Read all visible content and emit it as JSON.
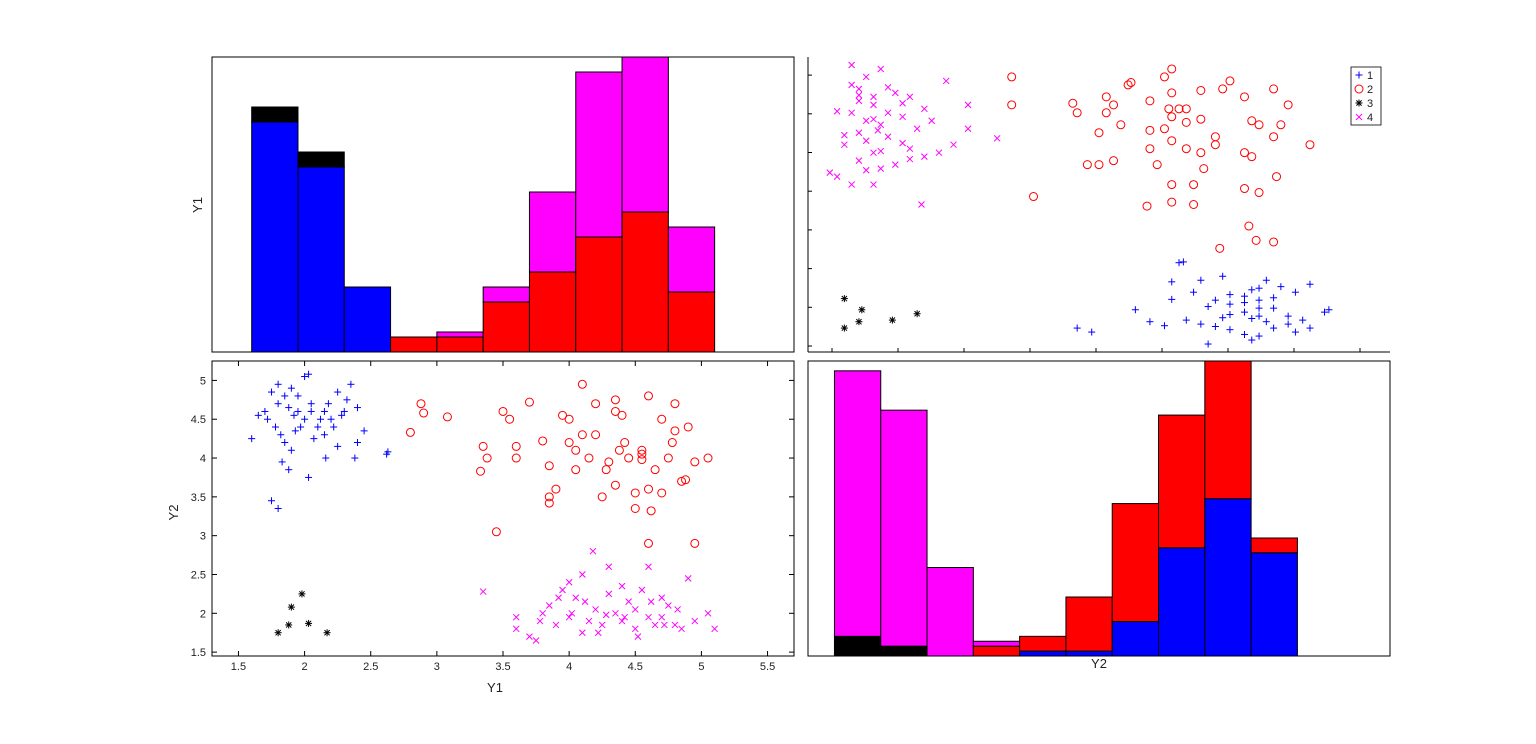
{
  "chart_data": [
    {
      "type": "bar",
      "panel": "top-left histogram",
      "ylabel": "Y1",
      "stacked": true,
      "bins_x": [
        1.6,
        1.95,
        2.3,
        2.65,
        3.0,
        3.35,
        3.7,
        4.05,
        4.4,
        4.75,
        5.1
      ],
      "series": [
        {
          "name": "1",
          "color": "#0000ff",
          "values": [
            46,
            37,
            13,
            0,
            0,
            0,
            0,
            0,
            0,
            0
          ]
        },
        {
          "name": "2",
          "color": "#ff0000",
          "values": [
            0,
            0,
            0,
            3,
            3,
            10,
            16,
            23,
            28,
            12
          ]
        },
        {
          "name": "3",
          "color": "#000000",
          "values": [
            3,
            3,
            0,
            0,
            0,
            0,
            0,
            0,
            0,
            0
          ]
        },
        {
          "name": "4",
          "color": "#ff00ff",
          "values": [
            0,
            0,
            0,
            0,
            1,
            3,
            16,
            33,
            31,
            13
          ]
        }
      ]
    },
    {
      "type": "scatter",
      "panel": "top-right scatter",
      "legend": {
        "placement": "top-right",
        "entries": [
          "1",
          "2",
          "3",
          "4"
        ]
      },
      "xlim": [
        1.5,
        5.5
      ],
      "ylim": [
        1.5,
        5.2
      ]
    },
    {
      "type": "scatter",
      "panel": "bottom-left scatter",
      "xlabel": "Y1",
      "ylabel": "Y2",
      "xlim": [
        1.3,
        5.7
      ],
      "ylim": [
        1.45,
        5.25
      ],
      "xticks": [
        "1.5",
        "2",
        "2.5",
        "3",
        "3.5",
        "4",
        "4.5",
        "5",
        "5.5"
      ],
      "yticks": [
        "1.5",
        "2",
        "2.5",
        "3",
        "3.5",
        "4",
        "4.5",
        "5"
      ],
      "series": [
        {
          "name": "1",
          "color": "#0000ff",
          "marker": "+",
          "points": [
            [
              1.75,
              3.45
            ],
            [
              1.8,
              3.35
            ],
            [
              2.62,
              4.05
            ],
            [
              1.6,
              4.25
            ],
            [
              2.63,
              4.08
            ],
            [
              2.38,
              4.0
            ],
            [
              2.16,
              4.0
            ],
            [
              2.03,
              3.75
            ],
            [
              2.4,
              4.2
            ],
            [
              1.8,
              4.95
            ],
            [
              1.85,
              4.8
            ],
            [
              1.9,
              4.9
            ],
            [
              2.0,
              5.05
            ],
            [
              2.03,
              5.08
            ],
            [
              2.35,
              4.95
            ],
            [
              2.25,
              4.85
            ],
            [
              1.75,
              4.85
            ],
            [
              1.78,
              4.4
            ],
            [
              1.82,
              4.3
            ],
            [
              1.95,
              4.6
            ],
            [
              2.0,
              4.5
            ],
            [
              2.05,
              4.6
            ],
            [
              2.1,
              4.4
            ],
            [
              2.15,
              4.3
            ],
            [
              2.2,
              4.5
            ],
            [
              2.3,
              4.6
            ],
            [
              1.7,
              4.6
            ],
            [
              1.65,
              4.55
            ],
            [
              1.85,
              4.2
            ],
            [
              1.9,
              4.1
            ],
            [
              2.12,
              4.5
            ],
            [
              2.18,
              4.7
            ],
            [
              2.28,
              4.55
            ],
            [
              1.93,
              4.35
            ],
            [
              1.88,
              4.65
            ],
            [
              1.97,
              4.4
            ],
            [
              2.07,
              4.25
            ],
            [
              1.8,
              4.7
            ],
            [
              1.92,
              4.55
            ],
            [
              2.45,
              4.35
            ],
            [
              1.83,
              3.95
            ],
            [
              1.88,
              3.85
            ],
            [
              2.25,
              4.15
            ],
            [
              2.32,
              4.75
            ],
            [
              2.4,
              4.65
            ],
            [
              1.72,
              4.5
            ],
            [
              1.95,
              4.8
            ],
            [
              2.05,
              4.7
            ],
            [
              2.22,
              4.4
            ],
            [
              2.15,
              4.6
            ]
          ]
        },
        {
          "name": "2",
          "color": "#ff0000",
          "marker": "o",
          "points": [
            [
              2.8,
              4.33
            ],
            [
              2.88,
              4.7
            ],
            [
              2.9,
              4.58
            ],
            [
              3.08,
              4.53
            ],
            [
              3.33,
              3.83
            ],
            [
              3.35,
              4.15
            ],
            [
              3.38,
              4.0
            ],
            [
              3.45,
              3.05
            ],
            [
              3.5,
              4.6
            ],
            [
              3.55,
              4.5
            ],
            [
              3.6,
              4.0
            ],
            [
              3.6,
              4.15
            ],
            [
              3.7,
              4.72
            ],
            [
              3.8,
              4.22
            ],
            [
              3.85,
              3.9
            ],
            [
              3.85,
              3.5
            ],
            [
              3.85,
              3.42
            ],
            [
              3.9,
              3.6
            ],
            [
              3.95,
              4.55
            ],
            [
              4.0,
              4.2
            ],
            [
              4.0,
              4.5
            ],
            [
              4.05,
              4.1
            ],
            [
              4.1,
              4.95
            ],
            [
              4.1,
              4.3
            ],
            [
              4.15,
              4.0
            ],
            [
              4.2,
              4.7
            ],
            [
              4.2,
              4.3
            ],
            [
              4.25,
              3.5
            ],
            [
              4.28,
              3.85
            ],
            [
              4.3,
              3.95
            ],
            [
              4.35,
              4.75
            ],
            [
              4.35,
              4.6
            ],
            [
              4.38,
              4.1
            ],
            [
              4.4,
              4.55
            ],
            [
              4.42,
              4.2
            ],
            [
              4.45,
              4.0
            ],
            [
              4.5,
              3.55
            ],
            [
              4.5,
              3.35
            ],
            [
              4.55,
              4.1
            ],
            [
              4.55,
              4.05
            ],
            [
              4.55,
              3.98
            ],
            [
              4.6,
              2.9
            ],
            [
              4.6,
              3.6
            ],
            [
              4.6,
              4.8
            ],
            [
              4.65,
              3.85
            ],
            [
              4.7,
              3.55
            ],
            [
              4.7,
              4.5
            ],
            [
              4.75,
              4.0
            ],
            [
              4.8,
              4.35
            ],
            [
              4.8,
              4.7
            ],
            [
              4.85,
              3.7
            ],
            [
              4.88,
              3.72
            ],
            [
              4.9,
              4.4
            ],
            [
              4.95,
              3.95
            ],
            [
              4.95,
              2.9
            ],
            [
              5.05,
              4.0
            ],
            [
              4.62,
              3.32
            ],
            [
              4.35,
              3.65
            ],
            [
              4.05,
              3.85
            ],
            [
              4.78,
              4.2
            ]
          ]
        },
        {
          "name": "3",
          "color": "#000000",
          "marker": "*",
          "points": [
            [
              1.8,
              1.75
            ],
            [
              1.88,
              1.85
            ],
            [
              1.9,
              2.08
            ],
            [
              1.98,
              2.25
            ],
            [
              2.03,
              1.87
            ],
            [
              2.17,
              1.75
            ]
          ]
        },
        {
          "name": "4",
          "color": "#ff00ff",
          "marker": "x",
          "points": [
            [
              3.35,
              2.28
            ],
            [
              3.6,
              1.95
            ],
            [
              3.6,
              1.8
            ],
            [
              3.78,
              1.9
            ],
            [
              3.8,
              2.0
            ],
            [
              3.85,
              2.1
            ],
            [
              3.9,
              1.85
            ],
            [
              3.95,
              2.3
            ],
            [
              4.0,
              2.4
            ],
            [
              4.0,
              1.95
            ],
            [
              4.05,
              2.2
            ],
            [
              4.1,
              2.5
            ],
            [
              4.1,
              1.75
            ],
            [
              4.15,
              1.9
            ],
            [
              4.18,
              2.8
            ],
            [
              4.2,
              2.05
            ],
            [
              4.25,
              1.85
            ],
            [
              4.3,
              2.25
            ],
            [
              4.3,
              2.6
            ],
            [
              4.35,
              2.0
            ],
            [
              4.4,
              1.9
            ],
            [
              4.4,
              2.35
            ],
            [
              4.45,
              2.15
            ],
            [
              4.5,
              1.8
            ],
            [
              4.5,
              2.05
            ],
            [
              4.55,
              2.3
            ],
            [
              4.6,
              1.95
            ],
            [
              4.6,
              2.6
            ],
            [
              4.65,
              1.85
            ],
            [
              4.7,
              2.2
            ],
            [
              4.7,
              1.95
            ],
            [
              4.75,
              2.1
            ],
            [
              4.8,
              1.85
            ],
            [
              4.85,
              1.8
            ],
            [
              4.9,
              2.45
            ],
            [
              4.95,
              1.9
            ],
            [
              5.05,
              2.0
            ],
            [
              5.1,
              1.8
            ],
            [
              3.7,
              1.7
            ],
            [
              3.75,
              1.65
            ],
            [
              4.12,
              2.15
            ],
            [
              4.28,
              1.98
            ],
            [
              4.52,
              1.7
            ],
            [
              4.62,
              2.15
            ],
            [
              4.82,
              2.05
            ],
            [
              4.02,
              2.0
            ],
            [
              3.92,
              2.2
            ],
            [
              4.42,
              1.95
            ],
            [
              4.72,
              1.85
            ],
            [
              4.22,
              1.75
            ]
          ]
        }
      ]
    },
    {
      "type": "bar",
      "panel": "bottom-right histogram",
      "xlabel": "Y2",
      "stacked": true,
      "bins_x": [
        1.5,
        1.85,
        2.2,
        2.55,
        2.9,
        3.25,
        3.6,
        3.95,
        4.3,
        4.65,
        5.0
      ],
      "series": [
        {
          "name": "3",
          "color": "#000000",
          "values": [
            4,
            2,
            0,
            0,
            0,
            0,
            0,
            0,
            0,
            0
          ]
        },
        {
          "name": "1",
          "color": "#0000ff",
          "values": [
            0,
            0,
            0,
            0,
            1,
            1,
            7,
            22,
            32,
            21
          ]
        },
        {
          "name": "2",
          "color": "#ff0000",
          "values": [
            0,
            0,
            0,
            2,
            3,
            11,
            24,
            27,
            28,
            3
          ]
        },
        {
          "name": "4",
          "color": "#ff00ff",
          "values": [
            54,
            48,
            18,
            1,
            0,
            0,
            0,
            0,
            0,
            0
          ]
        }
      ]
    }
  ]
}
